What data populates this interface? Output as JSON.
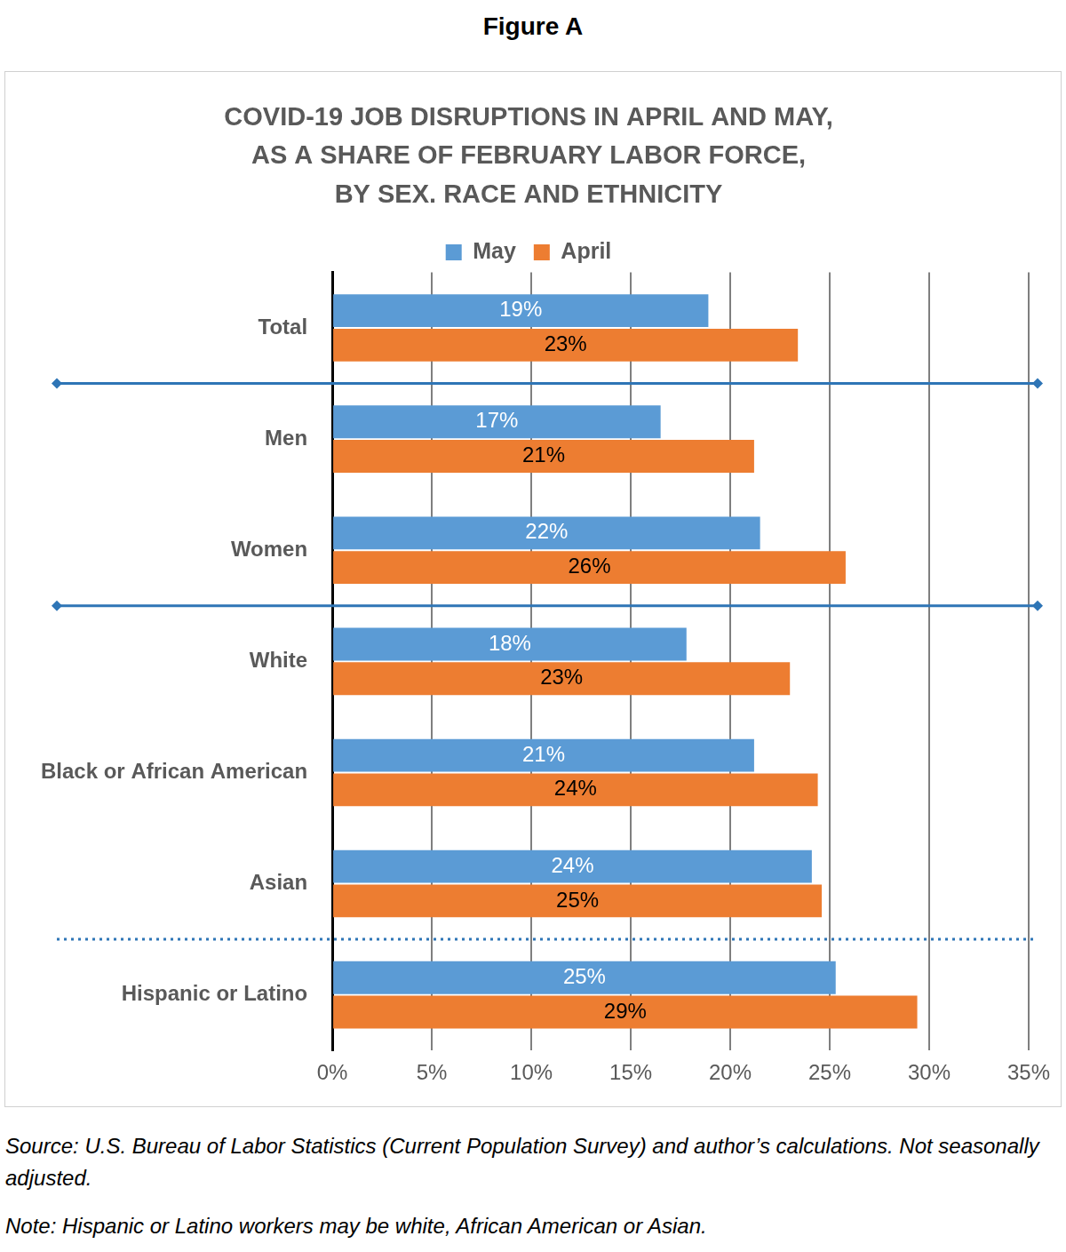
{
  "figure_label": "Figure A",
  "chart_data": {
    "type": "bar",
    "orientation": "horizontal",
    "title": [
      "COVID-19 JOB DISRUPTIONS IN APRIL AND MAY,",
      "AS A SHARE OF FEBRUARY LABOR FORCE,",
      "BY SEX. RACE AND ETHNICITY"
    ],
    "categories": [
      "Total",
      "Men",
      "Women",
      "White",
      "Black or African American",
      "Asian",
      "Hispanic or Latino"
    ],
    "series": [
      {
        "name": "May",
        "color": "#5B9BD5",
        "values": [
          18.9,
          16.5,
          21.5,
          17.8,
          21.2,
          24.1,
          25.3
        ],
        "value_labels": [
          "19%",
          "17%",
          "22%",
          "18%",
          "21%",
          "24%",
          "25%"
        ]
      },
      {
        "name": "April",
        "color": "#ED7D31",
        "values": [
          23.4,
          21.2,
          25.8,
          23.0,
          24.4,
          24.6,
          29.4
        ],
        "value_labels": [
          "23%",
          "21%",
          "26%",
          "23%",
          "24%",
          "25%",
          "29%"
        ]
      }
    ],
    "xlim": [
      0,
      35
    ],
    "xticks": [
      {
        "value": 0,
        "label": "0%"
      },
      {
        "value": 5,
        "label": "5%"
      },
      {
        "value": 10,
        "label": "10%"
      },
      {
        "value": 15,
        "label": "15%"
      },
      {
        "value": 20,
        "label": "20%"
      },
      {
        "value": 25,
        "label": "25%"
      },
      {
        "value": 30,
        "label": "30%"
      },
      {
        "value": 35,
        "label": "35%"
      }
    ],
    "grid": true,
    "legend": "top",
    "data_labels": true
  },
  "source": "Source:  U.S. Bureau of Labor Statistics (Current Population Survey) and author’s calculations.  Not seasonally adjusted.",
  "note": "Note: Hispanic or Latino workers may be white, African American or Asian."
}
